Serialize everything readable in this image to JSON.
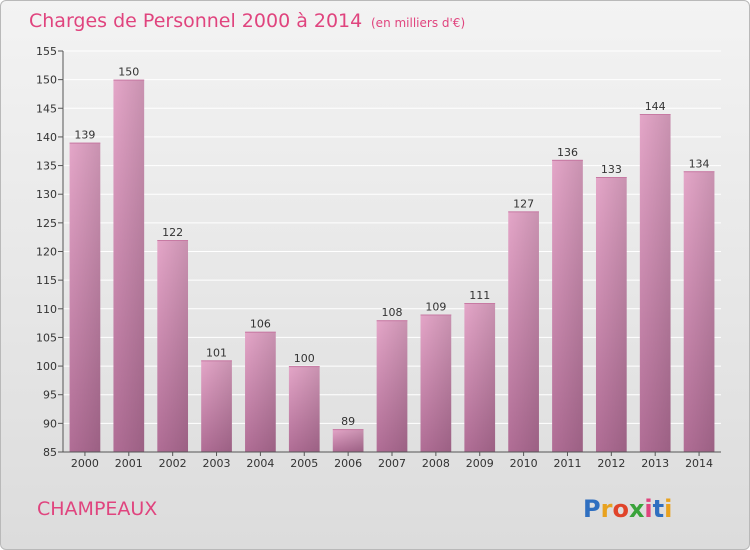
{
  "chart_data": {
    "type": "bar",
    "title": "Charges de Personnel 2000 à 2014",
    "subtitle": "(en milliers d'€)",
    "categories": [
      "2000",
      "2001",
      "2002",
      "2003",
      "2004",
      "2005",
      "2006",
      "2007",
      "2008",
      "2009",
      "2010",
      "2011",
      "2012",
      "2013",
      "2014"
    ],
    "values": [
      139,
      150,
      122,
      101,
      106,
      100,
      89,
      108,
      109,
      111,
      127,
      136,
      133,
      144,
      134
    ],
    "ylim": [
      85,
      155
    ],
    "yticks": [
      85,
      90,
      95,
      100,
      105,
      110,
      115,
      120,
      125,
      130,
      135,
      140,
      145,
      150,
      155
    ],
    "grid": true,
    "bar_color": "#d98ab2",
    "xlabel": "",
    "ylabel": ""
  },
  "footer": {
    "commune": "CHAMPEAUX",
    "brand": "Proxiti",
    "brand_colors": [
      "#2f6fc0",
      "#e8a21f",
      "#e0442a",
      "#3aa33b",
      "#e0447e",
      "#2f6fc0",
      "#e8a21f"
    ]
  },
  "colors": {
    "accent": "#e0447e",
    "grid": "#ffffff"
  }
}
